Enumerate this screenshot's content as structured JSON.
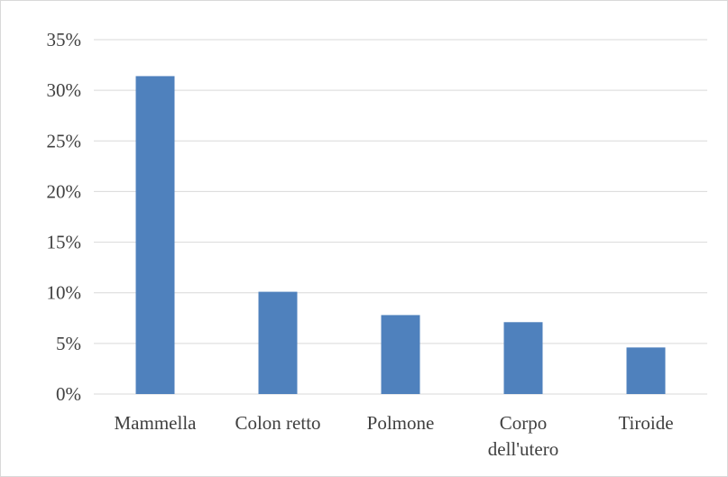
{
  "chart_data": {
    "type": "bar",
    "categories": [
      "Mammella",
      "Colon retto",
      "Polmone",
      "Corpo dell'utero",
      "Tiroide"
    ],
    "category_lines": [
      [
        "Mammella"
      ],
      [
        "Colon retto"
      ],
      [
        "Polmone"
      ],
      [
        "Corpo",
        "dell'utero"
      ],
      [
        "Tiroide"
      ]
    ],
    "values": [
      31.4,
      10.1,
      7.8,
      7.1,
      4.6
    ],
    "value_unit": "%",
    "ylim": [
      0,
      35
    ],
    "yticks": [
      0,
      5,
      10,
      15,
      20,
      25,
      30,
      35
    ],
    "ytick_labels": [
      "0%",
      "5%",
      "10%",
      "15%",
      "20%",
      "25%",
      "30%",
      "35%"
    ],
    "title": "",
    "xlabel": "",
    "ylabel": "",
    "grid": true,
    "legend": "none",
    "colors": {
      "bar": "#4f81bd",
      "grid": "#d9d9d9",
      "text": "#404040",
      "border": "#d9d9d9"
    }
  }
}
